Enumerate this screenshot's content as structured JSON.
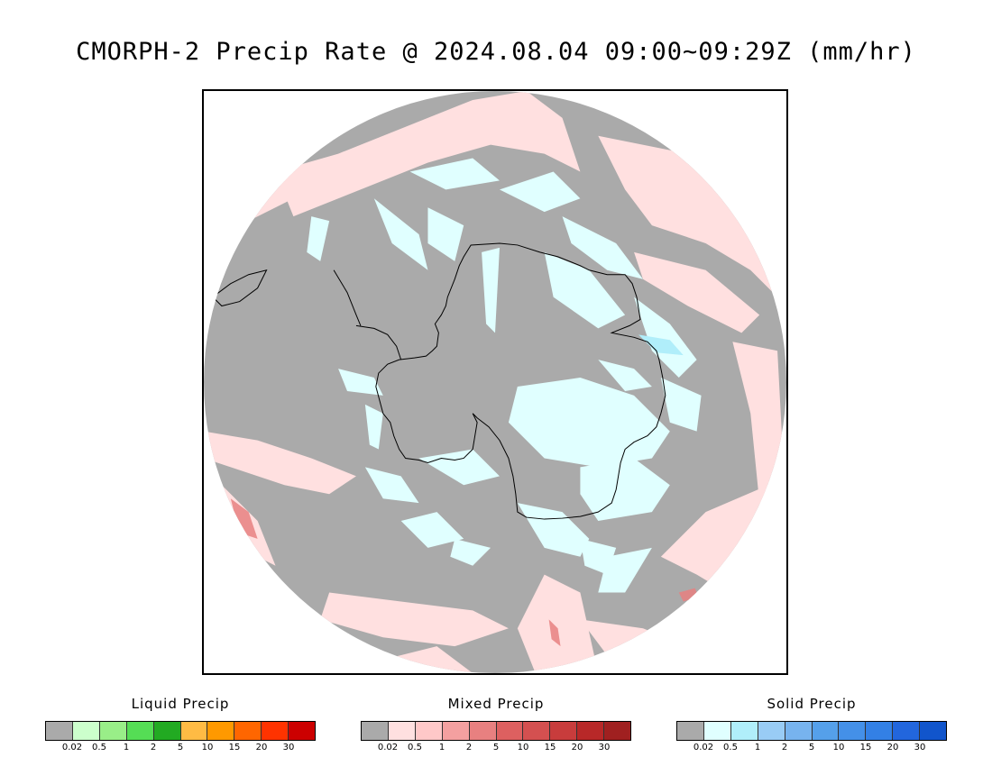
{
  "title": "CMORPH-2 Precip Rate @ 2024.08.04 09:00~09:29Z (mm/hr)",
  "map": {
    "projection": "south-polar-stereographic",
    "no_precip_color": "#aaaaaa",
    "coastline_color": "#000000"
  },
  "legends": [
    {
      "id": "liquid",
      "title": "Liquid Precip",
      "colors": [
        "#aaaaaa",
        "#ccffcc",
        "#99ee88",
        "#55dd55",
        "#22aa22",
        "#ffbb44",
        "#ff9900",
        "#ff6600",
        "#ff3300",
        "#cc0000"
      ],
      "ticks": [
        "0.02",
        "0.5",
        "1",
        "2",
        "5",
        "10",
        "15",
        "20",
        "30"
      ]
    },
    {
      "id": "mixed",
      "title": "Mixed Precip",
      "colors": [
        "#aaaaaa",
        "#ffe0e0",
        "#ffc8c8",
        "#f4a0a0",
        "#e88080",
        "#dd6060",
        "#d45050",
        "#c83c3c",
        "#b82828",
        "#a02020"
      ],
      "ticks": [
        "0.02",
        "0.5",
        "1",
        "2",
        "5",
        "10",
        "15",
        "20",
        "30"
      ]
    },
    {
      "id": "solid",
      "title": "Solid Precip",
      "colors": [
        "#aaaaaa",
        "#e0ffff",
        "#b0eefa",
        "#99ccf5",
        "#77b3ee",
        "#55a0ea",
        "#4490e8",
        "#3380e5",
        "#2266dd",
        "#1155cc"
      ],
      "ticks": [
        "0.02",
        "0.5",
        "1",
        "2",
        "5",
        "10",
        "15",
        "20",
        "30"
      ]
    }
  ]
}
